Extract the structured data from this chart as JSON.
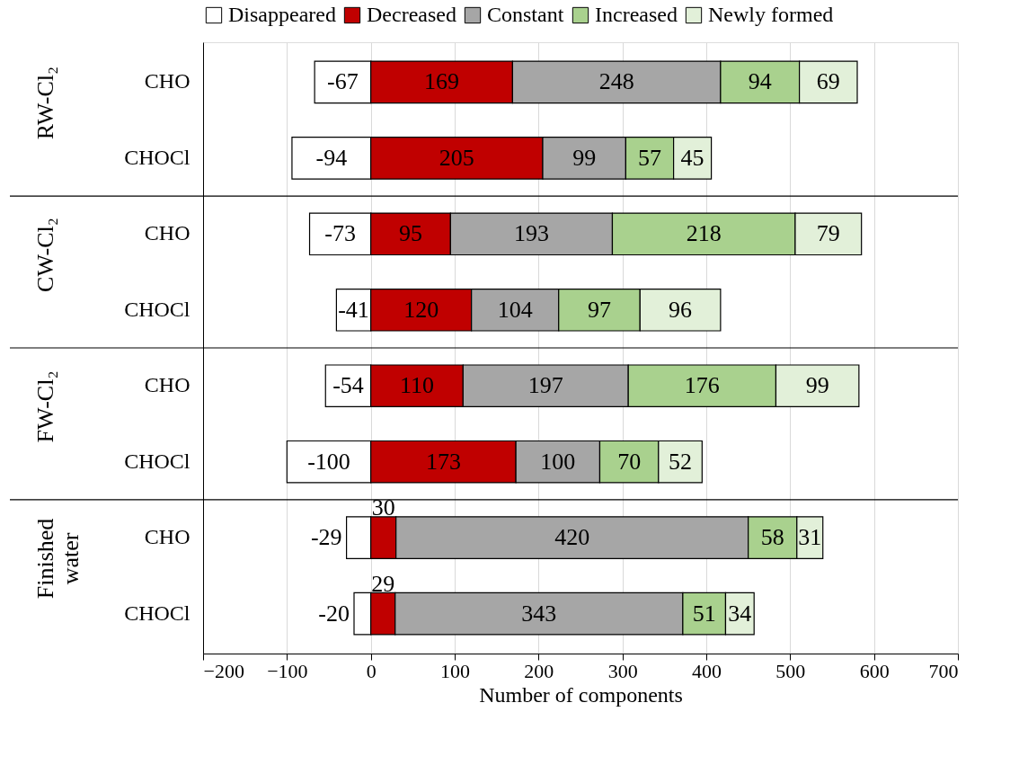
{
  "chart_data": {
    "type": "bar",
    "orientation": "horizontal",
    "stacked": true,
    "xlabel": "Number of components",
    "categories": [
      "CHO",
      "CHOCl",
      "CHO",
      "CHOCl",
      "CHO",
      "CHOCl",
      "CHO",
      "CHOCl"
    ],
    "annotations": [
      "RW-Cl₂",
      "CW-Cl₂",
      "FW-Cl₂",
      "Finished water"
    ],
    "series": [
      {
        "name": "Disappeared",
        "color": "#ffffff",
        "values": [
          -67,
          -94,
          -73,
          -41,
          -54,
          -100,
          -29,
          -20
        ]
      },
      {
        "name": "Decreased",
        "color": "#c00000",
        "values": [
          169,
          205,
          95,
          120,
          110,
          173,
          30,
          29
        ]
      },
      {
        "name": "Constant",
        "color": "#a6a6a6",
        "values": [
          248,
          99,
          193,
          104,
          197,
          100,
          420,
          343
        ]
      },
      {
        "name": "Increased",
        "color": "#a9d18e",
        "values": [
          94,
          57,
          218,
          97,
          176,
          70,
          58,
          51
        ]
      },
      {
        "name": "Newly formed",
        "color": "#e2f0d9",
        "values": [
          69,
          45,
          79,
          96,
          99,
          52,
          31,
          34
        ]
      }
    ],
    "xlim": [
      -200,
      700
    ],
    "xticks": [
      -200,
      -100,
      0,
      100,
      200,
      300,
      400,
      500,
      600,
      700
    ],
    "data_labels": true,
    "grid": "x",
    "legend": "top"
  }
}
